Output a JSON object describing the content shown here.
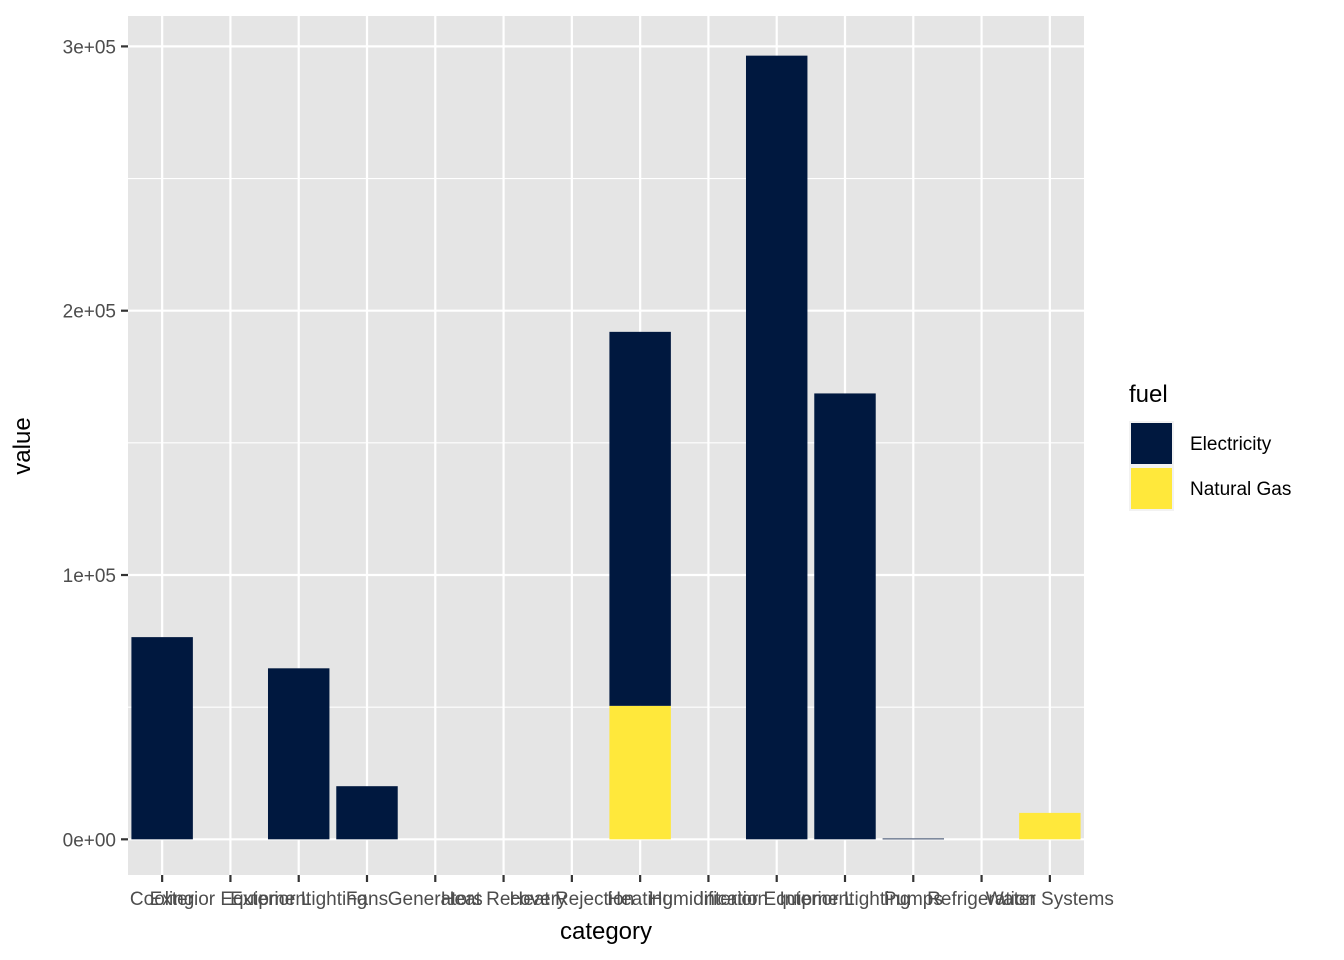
{
  "chart_data": {
    "type": "bar",
    "stacked": true,
    "xlabel": "category",
    "ylabel": "value",
    "categories": [
      "Cooling",
      "Exterior Equipment",
      "Exterior Lighting",
      "Fans",
      "Generators",
      "Heat Recovery",
      "Heat Rejection",
      "Heating",
      "Humidification",
      "Interior Equipment",
      "Interior Lighting",
      "Pumps",
      "Refrigeration",
      "Water Systems"
    ],
    "series": [
      {
        "name": "Electricity",
        "color": "#00183f",
        "values": [
          76500,
          0,
          64700,
          20100,
          0,
          0,
          0,
          141500,
          0,
          296500,
          168700,
          300,
          0,
          0
        ]
      },
      {
        "name": "Natural Gas",
        "color": "#ffe83b",
        "values": [
          0,
          0,
          0,
          0,
          0,
          0,
          0,
          50500,
          0,
          0,
          0,
          0,
          0,
          10000
        ]
      }
    ],
    "yticks": [
      0,
      100000,
      200000,
      300000
    ],
    "ytick_labels": [
      "0e+00",
      "1e+05",
      "2e+05",
      "3e+05"
    ],
    "ylim": [
      -13500,
      311500
    ],
    "grid": true,
    "legend": {
      "title": "fuel",
      "position": "right"
    },
    "panel_background": "#e5e5e5",
    "gridline_color": "#ffffff"
  }
}
